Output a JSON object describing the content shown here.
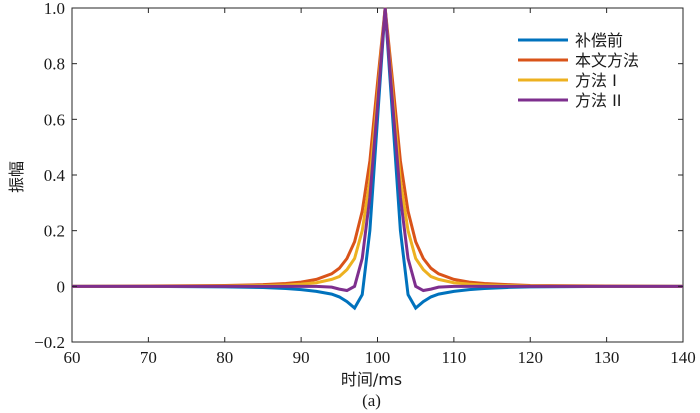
{
  "chart_data": {
    "type": "line",
    "xlabel": "时间/ms",
    "ylabel": "振幅",
    "caption": "(a)",
    "xlim": [
      60,
      140
    ],
    "ylim": [
      -0.2,
      1.0
    ],
    "xticks": [
      60,
      70,
      80,
      90,
      100,
      110,
      120,
      130,
      140
    ],
    "yticks": [
      -0.2,
      0,
      0.2,
      0.4,
      0.6,
      0.8,
      1.0
    ],
    "ytick_labels": [
      "−0.2",
      "0",
      "0.2",
      "0.4",
      "0.6",
      "0.8",
      "1.0"
    ],
    "legend_position": "top-right",
    "series": [
      {
        "name": "补偿前",
        "color": "#0072BD",
        "x": [
          60,
          70,
          80,
          85,
          88,
          90,
          92,
          94,
          95,
          96,
          97,
          98,
          99,
          100,
          101,
          102,
          103,
          104,
          105,
          106,
          107,
          108,
          110,
          112,
          114,
          117,
          120,
          130,
          140
        ],
        "y": [
          0,
          0,
          -0.002,
          -0.004,
          -0.008,
          -0.012,
          -0.018,
          -0.028,
          -0.038,
          -0.055,
          -0.078,
          -0.03,
          0.2,
          0.6,
          1.0,
          0.6,
          0.2,
          -0.03,
          -0.078,
          -0.055,
          -0.038,
          -0.028,
          -0.018,
          -0.012,
          -0.008,
          -0.004,
          -0.002,
          0,
          0
        ]
      },
      {
        "name": "本文方法",
        "color": "#D95319",
        "x": [
          60,
          70,
          80,
          85,
          88,
          90,
          92,
          94,
          95,
          96,
          97,
          98,
          99,
          100,
          101,
          102,
          103,
          104,
          105,
          106,
          107,
          108,
          110,
          112,
          114,
          117,
          120,
          130,
          140
        ],
        "y": [
          0,
          0.001,
          0.003,
          0.006,
          0.01,
          0.015,
          0.025,
          0.045,
          0.065,
          0.1,
          0.16,
          0.27,
          0.45,
          0.73,
          1.0,
          0.73,
          0.45,
          0.27,
          0.16,
          0.1,
          0.065,
          0.045,
          0.025,
          0.015,
          0.01,
          0.006,
          0.003,
          0.001,
          0
        ]
      },
      {
        "name": "方法 I",
        "color": "#EDB120",
        "x": [
          60,
          70,
          80,
          85,
          88,
          90,
          92,
          94,
          95,
          96,
          97,
          98,
          99,
          100,
          101,
          102,
          103,
          104,
          105,
          106,
          107,
          108,
          110,
          112,
          114,
          117,
          120,
          130,
          140
        ],
        "y": [
          0,
          0,
          0.001,
          0.003,
          0.005,
          0.008,
          0.013,
          0.025,
          0.035,
          0.06,
          0.1,
          0.2,
          0.38,
          0.68,
          1.0,
          0.68,
          0.38,
          0.2,
          0.1,
          0.06,
          0.035,
          0.025,
          0.013,
          0.008,
          0.005,
          0.003,
          0.001,
          0,
          0
        ]
      },
      {
        "name": "方法 II",
        "color": "#7E2F8E",
        "x": [
          60,
          70,
          80,
          85,
          88,
          90,
          92,
          94,
          95,
          96,
          97,
          98,
          99,
          100,
          101,
          102,
          103,
          104,
          105,
          106,
          107,
          108,
          110,
          112,
          114,
          117,
          120,
          130,
          140
        ],
        "y": [
          0,
          0,
          0,
          0,
          0,
          0,
          0,
          -0.003,
          -0.01,
          -0.015,
          0,
          0.1,
          0.32,
          0.65,
          1.0,
          0.65,
          0.32,
          0.1,
          0,
          -0.015,
          -0.01,
          -0.003,
          0,
          0,
          0,
          0,
          0,
          0,
          0
        ]
      }
    ]
  }
}
